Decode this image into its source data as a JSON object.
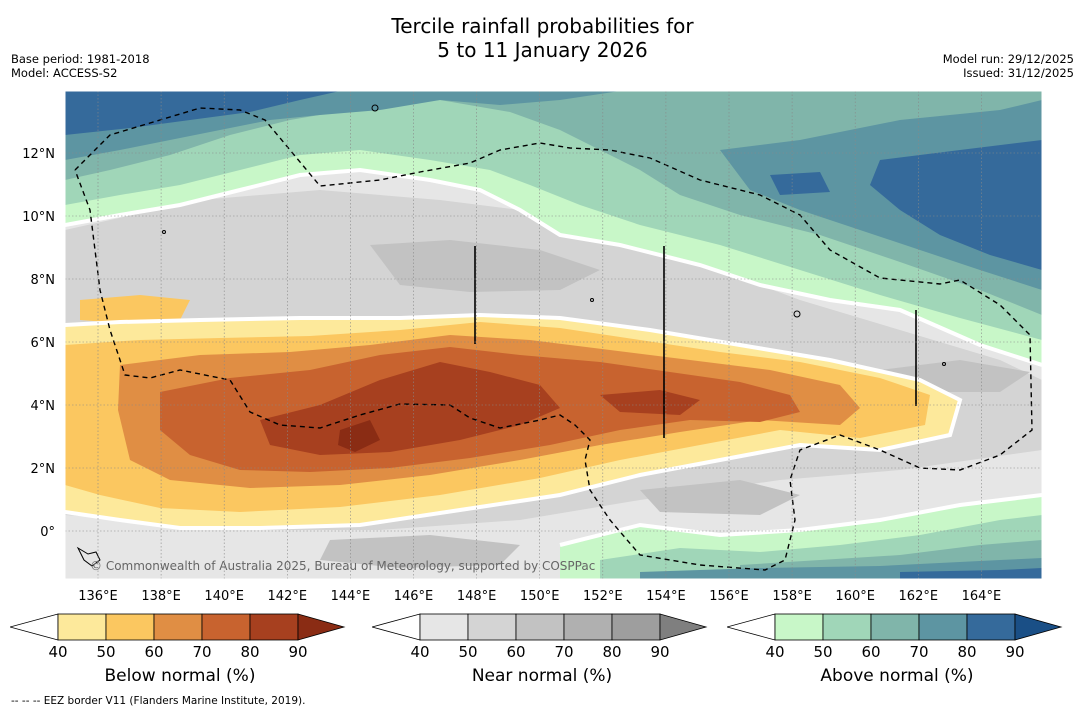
{
  "title": {
    "line1": "Tercile rainfall probabilities for",
    "line2": "5 to 11 January 2026"
  },
  "meta_left": {
    "base_period": "Base period: 1981-2018",
    "model": "Model: ACCESS-S2"
  },
  "meta_right": {
    "model_run": "Model run: 29/12/2025",
    "issued": "Issued: 31/12/2025"
  },
  "map": {
    "lat_ticks": [
      "12°N",
      "10°N",
      "8°N",
      "6°N",
      "4°N",
      "2°N",
      "0°"
    ],
    "lon_ticks": [
      "136°E",
      "138°E",
      "140°E",
      "142°E",
      "144°E",
      "146°E",
      "148°E",
      "150°E",
      "152°E",
      "154°E",
      "156°E",
      "158°E",
      "160°E",
      "162°E",
      "164°E"
    ],
    "copyright": "© Commonwealth of Australia 2025, Bureau of Meteorology, supported by COSPPac"
  },
  "colorbars": [
    {
      "label": "Below normal (%)",
      "ticks": [
        "40",
        "50",
        "60",
        "70",
        "80",
        "90"
      ],
      "colors": [
        "#ffffff",
        "#fde99b",
        "#fbc760",
        "#e08e44",
        "#c8632f",
        "#a7401f",
        "#8a2c14"
      ]
    },
    {
      "label": "Near normal (%)",
      "ticks": [
        "40",
        "50",
        "60",
        "70",
        "80",
        "90"
      ],
      "colors": [
        "#ffffff",
        "#e6e6e6",
        "#d4d4d4",
        "#c2c2c2",
        "#b0b0b0",
        "#9e9e9e",
        "#7f7f7f"
      ]
    },
    {
      "label": "Above normal (%)",
      "ticks": [
        "40",
        "50",
        "60",
        "70",
        "80",
        "90"
      ],
      "colors": [
        "#ffffff",
        "#c8f7c8",
        "#a0d6b8",
        "#80b5aa",
        "#5d95a2",
        "#356a9b",
        "#1a4f86"
      ]
    }
  ],
  "footer": "--  --  -- EEZ border V11 (Flanders Marine Institute, 2019)."
}
